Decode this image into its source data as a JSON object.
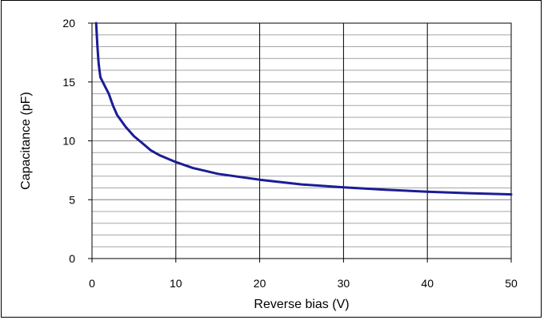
{
  "chart_data": {
    "type": "line",
    "title": "",
    "xlabel": "Reverse bias (V)",
    "ylabel": "Capacitance (pF)",
    "xlim": [
      0,
      50
    ],
    "ylim": [
      0,
      20
    ],
    "x_ticks": [
      "0",
      "10",
      "20",
      "30",
      "40",
      "50"
    ],
    "y_ticks": [
      "0",
      "5",
      "10",
      "15",
      "20"
    ],
    "grid": {
      "vertical_major": true,
      "horizontal_minor_step": 1,
      "horizontal_major_step": 5
    },
    "colors": {
      "series": "#1c1c96",
      "plot_background": "#ffffff",
      "minor_grid": "#a6a6a6",
      "major_grid": "#000000"
    },
    "series": [
      {
        "x": [
          0.5,
          0.65,
          0.8,
          1.0,
          1.5,
          2.0,
          2.5,
          3.0,
          4.0,
          5.0,
          6.0,
          7.0,
          8.0,
          10.0,
          12.0,
          15.0,
          20.0,
          25.0,
          30.0,
          35.0,
          40.0,
          45.0,
          50.0
        ],
        "y": [
          20.0,
          18.0,
          16.5,
          15.4,
          14.7,
          14.0,
          13.0,
          12.2,
          11.2,
          10.4,
          9.8,
          9.2,
          8.8,
          8.2,
          7.7,
          7.2,
          6.7,
          6.3,
          6.05,
          5.85,
          5.68,
          5.55,
          5.45
        ]
      }
    ]
  }
}
